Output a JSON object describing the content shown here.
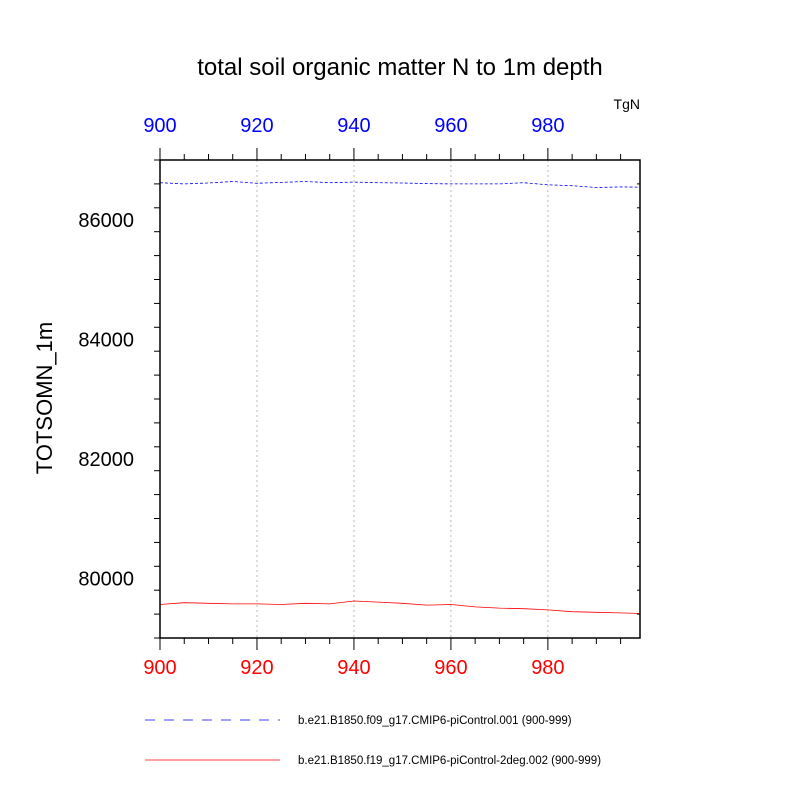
{
  "chart_data": {
    "type": "line",
    "title": "total soil organic matter N to 1m depth",
    "ylabel": "TOTSOMN_1m",
    "units": "TgN",
    "xlim": [
      900,
      999
    ],
    "ylim": [
      79000,
      87000
    ],
    "x_ticks": [
      900,
      920,
      940,
      960,
      980
    ],
    "y_ticks": [
      80000,
      82000,
      84000,
      86000
    ],
    "grid": "vertical dotted at major x ticks",
    "legend_position": "bottom",
    "colors": {
      "series_0": "#0000ff",
      "series_1": "#ff0000",
      "top_axis": "#0000ff",
      "bottom_axis": "#ff0000"
    },
    "series": [
      {
        "name": "b.e21.B1850.f09_g17.CMIP6-piControl.001 (900-999)",
        "color": "#0000ff",
        "dash": "dashed",
        "x": [
          900,
          905,
          910,
          915,
          920,
          925,
          930,
          935,
          940,
          945,
          950,
          955,
          960,
          965,
          970,
          975,
          980,
          985,
          990,
          995,
          999
        ],
        "y": [
          86620,
          86600,
          86615,
          86640,
          86610,
          86625,
          86640,
          86620,
          86630,
          86620,
          86615,
          86605,
          86600,
          86600,
          86600,
          86620,
          86585,
          86570,
          86540,
          86550,
          86545
        ]
      },
      {
        "name": "b.e21.B1850.f19_g17.CMIP6-piControl-2deg.002 (900-999)",
        "color": "#ff0000",
        "dash": "solid",
        "x": [
          900,
          905,
          910,
          915,
          920,
          925,
          930,
          935,
          940,
          945,
          950,
          955,
          960,
          965,
          970,
          975,
          980,
          985,
          990,
          995,
          999
        ],
        "y": [
          79560,
          79590,
          79580,
          79570,
          79570,
          79560,
          79580,
          79570,
          79620,
          79600,
          79580,
          79550,
          79560,
          79520,
          79500,
          79490,
          79470,
          79440,
          79430,
          79420,
          79410
        ]
      }
    ]
  }
}
